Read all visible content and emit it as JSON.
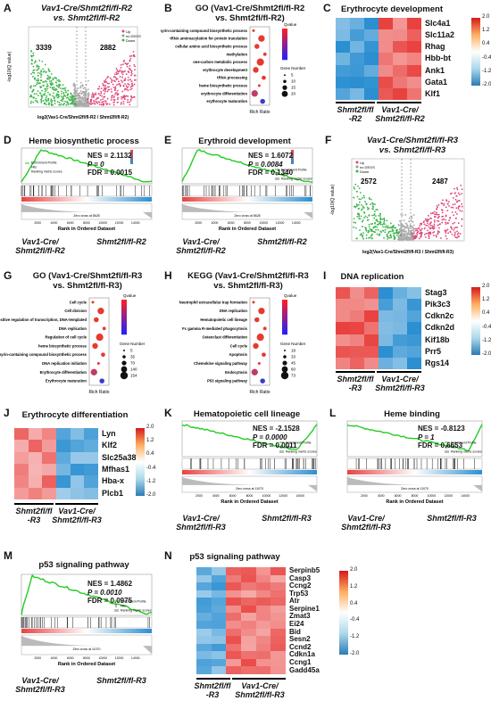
{
  "panels": {
    "A": {
      "label": "A",
      "title_line1": "Vav1-Cre/Shmt2fl/fl-R2",
      "title_line2": "vs. Shmt2fl/fl-R2",
      "count_left": "3339",
      "count_right": "2882",
      "legend": [
        "Up",
        "no DEGS",
        "Down"
      ],
      "xlabel": "log2(Vav1-Cre/Shmt2fl/fl-R2 / Shmt2fl/fl-R2)",
      "ylabel": "-log10(Q value)"
    },
    "B": {
      "label": "B",
      "title_line1": "GO (Vav1-Cre/Shmt2fl/fl-R2",
      "title_line2": "vs. Shmt2fl/fl-R2)",
      "terms": [
        "porphyrin-containing compound biosynthetic process",
        "tRNA aminoacylation for protein translation",
        "cellular amino acid biosynthetic process",
        "methylation",
        "one-carbon metabolic process",
        "erythrocyte development",
        "tRNA processing",
        "heme biosynthetic process",
        "erythrocyte differentiation",
        "erythrocyte maturation"
      ],
      "xlabel": "Rich Ratio",
      "qvalue_title": "Qvalue",
      "gene_number_title": "Gene Number",
      "gene_numbers": [
        "5",
        "10",
        "15",
        "20"
      ]
    },
    "C": {
      "label": "C",
      "title": "Erythrocyte development",
      "genes": [
        "Slc4a1",
        "Slc11a2",
        "Rhag",
        "Hbb-bt",
        "Ank1",
        "Gata1",
        "Klf1"
      ],
      "group1_line1": "Shmt2fl/fl",
      "group1_line2": "-R2",
      "group2_line1": "Vav1-Cre/",
      "group2_line2": "Shmt2fl/fl-R2",
      "cbar_ticks": [
        "2.0",
        "1.2",
        "0.4",
        "-0.4",
        "-1.2",
        "-2.0"
      ]
    },
    "D": {
      "label": "D",
      "title": "Heme biosynthetic process",
      "nes": "NES = 2.1132",
      "p": "P = 0",
      "fdr": "FDR = 0.0015",
      "xlabel": "Rank in Ordered Dataset",
      "group1_line1": "Vav1-Cre/",
      "group1_line2": "Shmt2fl/fl-R2",
      "group2": "Shmt2fl/fl-R2",
      "legend": [
        "Enrichment Profile",
        "Hits",
        "Ranking metric scores"
      ],
      "zero_cross": "Zero cross at 8628"
    },
    "E": {
      "label": "E",
      "title": "Erythroid development",
      "nes": "NES = 1.6072",
      "p": "P = 0.0084",
      "fdr": "FDR = 0.1340",
      "xlabel": "Rank in Ordered Dataset",
      "group1_line1": "Vav1-Cre/",
      "group1_line2": "Shmt2fl/fl-R2",
      "group2": "Shmt2fl/fl-R2",
      "legend": [
        "Enrichment Profile",
        "Hits",
        "Ranking metric scores"
      ],
      "zero_cross": "Zero cross at 8628"
    },
    "F": {
      "label": "F",
      "title_line1": "Vav1-Cre/Shmt2fl/fl-R3",
      "title_line2": "vs. Shmt2fl/fl-R3",
      "count_left": "2572",
      "count_right": "2487",
      "legend": [
        "Up",
        "no DEGS",
        "Down"
      ],
      "xlabel": "log2(Vav1-Cre/Shmt2fl/fl-R3 / Shmt2fl/fl-R3)",
      "ylabel": "-log10(Q value)"
    },
    "G": {
      "label": "G",
      "title_line1": "GO (Vav1-Cre/Shmt2fl/fl-R3",
      "title_line2": "vs. Shmt2fl/fl-R3)",
      "terms": [
        "Cell cycle",
        "Cell division",
        "positive regulation of transcription, DNA-templated",
        "DNA replication",
        "Regulation of cell cycle",
        "heme biosynthetic process",
        "porphyrin-containing compound biosynthetic process",
        "DNA replication initiation",
        "Erythrocyte differentiation",
        "Erythrocyte maturation"
      ],
      "xlabel": "Rich Ratio",
      "qvalue_title": "Qvalue",
      "gene_number_title": "Gene Number",
      "gene_numbers": [
        "5",
        "35",
        "70",
        "140",
        "154"
      ]
    },
    "H": {
      "label": "H",
      "title_line1": "KEGG (Vav1-Cre/Shmt2fl/fl-R3",
      "title_line2": "vs. Shmt2fl/fl-R3)",
      "terms": [
        "Neutrophil extracellular trap formation",
        "DNA replication",
        "Hematopoietic cell lineage",
        "Fc gamma R-mediated phagocytosis",
        "Osteoclast differentiation",
        "Cell cycle",
        "Apoptosis",
        "Chemokine signaling pathway",
        "Endocytosis",
        "P53 signaling pathway"
      ],
      "xlabel": "Rich Ratio",
      "qvalue_title": "Qvalue",
      "gene_number_title": "Gene Number",
      "gene_numbers": [
        "18",
        "33",
        "45",
        "60",
        "73"
      ]
    },
    "I": {
      "label": "I",
      "title": "DNA replication",
      "genes": [
        "Stag3",
        "Pik3c3",
        "Cdkn2c",
        "Cdkn2d",
        "Kif18b",
        "Prr5",
        "Rgs14"
      ],
      "group1_line1": "Shmt2fl/fl",
      "group1_line2": "-R3",
      "group2_line1": "Vav1-Cre/",
      "group2_line2": "Shmt2fl/fl-R3",
      "cbar_ticks": [
        "2.0",
        "1.2",
        "0.4",
        "-0.4",
        "-1.2",
        "-2.0"
      ]
    },
    "J": {
      "label": "J",
      "title": "Erythrocyte differentiation",
      "genes": [
        "Lyn",
        "Klf2",
        "Slc25a38",
        "Mfhas1",
        "Hba-x",
        "Plcb1"
      ],
      "group1_line1": "Shmt2fl/fl",
      "group1_line2": "-R3",
      "group2_line1": "Vav1-Cre/",
      "group2_line2": "Shmt2fl/fl-R3",
      "cbar_ticks": [
        "2.0",
        "1.2",
        "0.4",
        "-0.4",
        "-1.2",
        "-2.0"
      ]
    },
    "K": {
      "label": "K",
      "title": "Hematopoietic cell lineage",
      "nes": "NES = -2.1528",
      "p": "P = 0.0000",
      "fdr": "FDR = 0.0011",
      "xlabel": "Rank in Ordered Dataset",
      "group1_line1": "Vav1-Cre/",
      "group1_line2": "Shmt2fl/fl-R3",
      "group2": "Shmt2fl/fl-R3",
      "legend": [
        "Enrichment Profile",
        "Hits",
        "Ranking metric scores"
      ],
      "zero_cross": "Zero cross at 11070"
    },
    "L": {
      "label": "L",
      "title": "Heme binding",
      "nes": "NES = -0.8123",
      "p": "P = 1",
      "fdr": "FDR = 0.6653",
      "xlabel": "Rank in Ordered Dataset",
      "group1_line1": "Vav1-Cre/",
      "group1_line2": "Shmt2fl/fl-R3",
      "group2": "Shmt2fl/fl-R3",
      "legend": [
        "Enrichment Profile",
        "Hits",
        "Ranking metric scores"
      ],
      "zero_cross": "Zero cross at 11070"
    },
    "M": {
      "label": "M",
      "title": "p53 signaling pathway",
      "nes": "NES = 1.4862",
      "p": "P = 0.0010",
      "fdr": "FDR = 0.0975",
      "xlabel": "Rank in Ordered Dataset",
      "group1_line1": "Vav1-Cre/",
      "group1_line2": "Shmt2fl/fl-R3",
      "group2": "Shmt2fl/fl-R3",
      "legend": [
        "Enrichment Profile",
        "Hits",
        "Ranking metric scores"
      ],
      "zero_cross": "Zero cross at 11070"
    },
    "N": {
      "label": "N",
      "title": "p53 signaling pathway",
      "genes": [
        "Serpinb5",
        "Casp3",
        "Ccng2",
        "Trp53",
        "Atr",
        "Serpine1",
        "Zmat3",
        "Ei24",
        "Bid",
        "Sesn2",
        "Ccnd2",
        "Cdkn1a",
        "Ccng1",
        "Gadd45a"
      ],
      "group1_line1": "Shmt2fl/fl",
      "group1_line2": "-R3",
      "group2_line1": "Vav1-Cre/",
      "group2_line2": "Shmt2fl/fl-R3",
      "cbar_ticks": [
        "2.0",
        "1.2",
        "0.4",
        "-0.4",
        "-1.2",
        "-2.0"
      ]
    }
  },
  "colors": {
    "up": "#e0457b",
    "down": "#3cb44b",
    "gsea_line": "#22cc22",
    "heat_high": "#e8423f",
    "heat_low": "#2b8fd1"
  }
}
